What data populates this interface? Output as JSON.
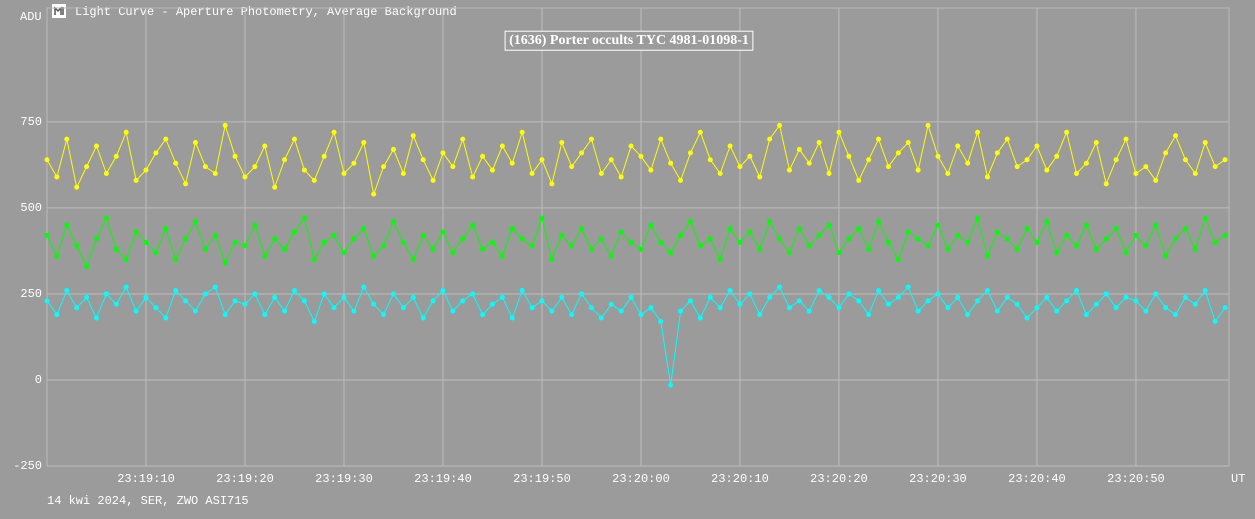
{
  "chart_data": {
    "type": "line",
    "window_title": "Light Curve - Aperture Photometry, Average Background",
    "title": "(1636) Porter occults TYC 4981-01098-1",
    "ylabel": "ADU",
    "xlabel": "UT",
    "footer": "14 kwi 2024, SER, ZWO ASI715",
    "grid": true,
    "xlim": [
      83940,
      84059.4
    ],
    "ylim": [
      -250,
      1081
    ],
    "yticks": [
      -250,
      0,
      250,
      500,
      750
    ],
    "xticks": [
      {
        "value": 83950,
        "label": "23:19:10"
      },
      {
        "value": 83960,
        "label": "23:19:20"
      },
      {
        "value": 83970,
        "label": "23:19:30"
      },
      {
        "value": 83980,
        "label": "23:19:40"
      },
      {
        "value": 83990,
        "label": "23:19:50"
      },
      {
        "value": 84000,
        "label": "23:20:00"
      },
      {
        "value": 84010,
        "label": "23:20:10"
      },
      {
        "value": 84020,
        "label": "23:20:20"
      },
      {
        "value": 84030,
        "label": "23:20:30"
      },
      {
        "value": 84040,
        "label": "23:20:40"
      },
      {
        "value": 84050,
        "label": "23:20:50"
      }
    ],
    "x": [
      83940,
      83941,
      83942,
      83943,
      83944,
      83945,
      83946,
      83947,
      83948,
      83949,
      83950,
      83951,
      83952,
      83953,
      83954,
      83955,
      83956,
      83957,
      83958,
      83959,
      83960,
      83961,
      83962,
      83963,
      83964,
      83965,
      83966,
      83967,
      83968,
      83969,
      83970,
      83971,
      83972,
      83973,
      83974,
      83975,
      83976,
      83977,
      83978,
      83979,
      83980,
      83981,
      83982,
      83983,
      83984,
      83985,
      83986,
      83987,
      83988,
      83989,
      83990,
      83991,
      83992,
      83993,
      83994,
      83995,
      83996,
      83997,
      83998,
      83999,
      84000,
      84001,
      84002,
      84003,
      84004,
      84005,
      84006,
      84007,
      84008,
      84009,
      84010,
      84011,
      84012,
      84013,
      84014,
      84015,
      84016,
      84017,
      84018,
      84019,
      84020,
      84021,
      84022,
      84023,
      84024,
      84025,
      84026,
      84027,
      84028,
      84029,
      84030,
      84031,
      84032,
      84033,
      84034,
      84035,
      84036,
      84037,
      84038,
      84039,
      84040,
      84041,
      84042,
      84043,
      84044,
      84045,
      84046,
      84047,
      84048,
      84049,
      84050,
      84051,
      84052,
      84053,
      84054,
      84055,
      84056,
      84057,
      84058,
      84059
    ],
    "series": [
      {
        "color": "#ffff00",
        "values": [
          640,
          590,
          700,
          560,
          620,
          680,
          600,
          650,
          720,
          580,
          610,
          660,
          700,
          630,
          570,
          690,
          620,
          600,
          740,
          650,
          590,
          620,
          680,
          560,
          640,
          700,
          610,
          580,
          650,
          720,
          600,
          630,
          690,
          540,
          620,
          670,
          600,
          710,
          640,
          580,
          660,
          620,
          700,
          590,
          650,
          610,
          680,
          630,
          720,
          600,
          640,
          570,
          690,
          620,
          660,
          700,
          600,
          640,
          590,
          680,
          650,
          610,
          700,
          630,
          580,
          660,
          720,
          640,
          600,
          680,
          620,
          650,
          590,
          700,
          740,
          610,
          670,
          630,
          690,
          600,
          720,
          650,
          580,
          640,
          700,
          620,
          660,
          690,
          610,
          740,
          650,
          600,
          680,
          630,
          720,
          590,
          660,
          700,
          620,
          640,
          680,
          610,
          650,
          720,
          600,
          630,
          690,
          570,
          640,
          700,
          600,
          620,
          580,
          660,
          710,
          640,
          600,
          690,
          620,
          640
        ]
      },
      {
        "color": "#00ff00",
        "values": [
          420,
          360,
          450,
          390,
          330,
          410,
          470,
          380,
          350,
          430,
          400,
          370,
          440,
          350,
          410,
          460,
          380,
          420,
          340,
          400,
          390,
          450,
          360,
          410,
          380,
          430,
          470,
          350,
          400,
          420,
          370,
          410,
          440,
          360,
          390,
          460,
          400,
          350,
          420,
          380,
          430,
          370,
          410,
          450,
          380,
          400,
          360,
          440,
          410,
          390,
          470,
          350,
          420,
          390,
          440,
          380,
          410,
          360,
          430,
          400,
          380,
          450,
          400,
          370,
          420,
          460,
          390,
          410,
          350,
          440,
          400,
          430,
          380,
          460,
          410,
          370,
          440,
          390,
          420,
          450,
          370,
          410,
          440,
          380,
          460,
          400,
          350,
          430,
          410,
          390,
          450,
          380,
          420,
          400,
          470,
          360,
          430,
          410,
          380,
          440,
          400,
          460,
          370,
          420,
          390,
          450,
          380,
          410,
          440,
          370,
          420,
          390,
          450,
          360,
          410,
          440,
          380,
          470,
          400,
          420
        ]
      },
      {
        "color": "#00ffff",
        "values": [
          230,
          190,
          260,
          210,
          240,
          180,
          250,
          220,
          270,
          200,
          240,
          210,
          180,
          260,
          230,
          200,
          250,
          270,
          190,
          230,
          220,
          250,
          190,
          240,
          200,
          260,
          230,
          170,
          250,
          210,
          240,
          200,
          270,
          220,
          190,
          250,
          210,
          240,
          180,
          230,
          260,
          200,
          230,
          250,
          190,
          220,
          240,
          180,
          260,
          210,
          230,
          200,
          240,
          190,
          250,
          210,
          180,
          220,
          200,
          240,
          190,
          210,
          170,
          -15,
          200,
          230,
          180,
          240,
          210,
          260,
          220,
          250,
          190,
          240,
          270,
          210,
          230,
          200,
          260,
          240,
          210,
          250,
          230,
          190,
          260,
          220,
          240,
          270,
          200,
          230,
          250,
          210,
          240,
          190,
          230,
          260,
          200,
          240,
          220,
          180,
          210,
          240,
          200,
          230,
          260,
          190,
          220,
          250,
          210,
          240,
          230,
          200,
          250,
          210,
          190,
          240,
          220,
          260,
          170,
          210
        ]
      }
    ]
  }
}
